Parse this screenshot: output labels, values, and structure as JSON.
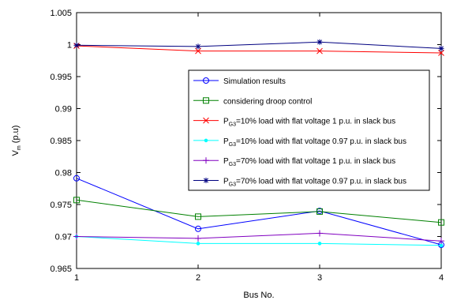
{
  "chart_data": {
    "type": "line",
    "title": "",
    "xlabel": "Bus No.",
    "ylabel": {
      "main": "V",
      "sub": "m",
      "rest": " (p.u)"
    },
    "x": [
      1,
      2,
      3,
      4
    ],
    "xlim": [
      1,
      4
    ],
    "ylim": [
      0.965,
      1.005
    ],
    "xticks": [
      "1",
      "2",
      "3",
      "4"
    ],
    "yticks": [
      "0.965",
      "0.97",
      "0.975",
      "0.98",
      "0.985",
      "0.99",
      "0.995",
      "1",
      "1.005"
    ],
    "ytick_values": [
      0.965,
      0.97,
      0.975,
      0.98,
      0.985,
      0.99,
      0.995,
      1.0,
      1.005
    ],
    "grid": false,
    "legend_position": "inside-right",
    "series": [
      {
        "name": "Simulation results",
        "name_parts": {
          "main": "Simulation results"
        },
        "values": [
          0.9791,
          0.9712,
          0.974,
          0.9687
        ],
        "color": "#0000ff",
        "marker": "circle"
      },
      {
        "name": "considering droop control",
        "name_parts": {
          "main": "considering droop control"
        },
        "values": [
          0.9757,
          0.9731,
          0.9739,
          0.9722
        ],
        "color": "#008000",
        "marker": "square"
      },
      {
        "name": "PG3=10% load with flat voltage 1 p.u. in slack bus",
        "name_parts": {
          "main": "P",
          "sub": "G3",
          "rest": "=10% load with flat voltage 1 p.u. in slack bus"
        },
        "values": [
          0.9998,
          0.999,
          0.999,
          0.9987
        ],
        "color": "#ff0000",
        "marker": "x"
      },
      {
        "name": "PG3=10% load with flat voltage 0.97 p.u. in slack bus",
        "name_parts": {
          "main": "P",
          "sub": "G3",
          "rest": "=10% load with flat voltage 0.97 p.u. in slack bus"
        },
        "values": [
          0.97,
          0.9689,
          0.9689,
          0.9686
        ],
        "color": "#00ffff",
        "marker": "dot"
      },
      {
        "name": "PG3=70% load with flat voltage 1 p.u. in slack bus",
        "name_parts": {
          "main": "P",
          "sub": "G3",
          "rest": "=70% load with flat voltage 1 p.u. in slack bus"
        },
        "values": [
          0.97,
          0.9697,
          0.9705,
          0.9693
        ],
        "color": "#8000c0",
        "marker": "plus"
      },
      {
        "name": "PG3=70% load with flat voltage 0.97 p.u. in slack bus",
        "name_parts": {
          "main": "P",
          "sub": "G3",
          "rest": "=70% load with flat voltage 0.97 p.u. in slack bus"
        },
        "values": [
          0.9999,
          0.9997,
          1.0004,
          0.9994
        ],
        "color": "#000080",
        "marker": "star"
      }
    ]
  }
}
